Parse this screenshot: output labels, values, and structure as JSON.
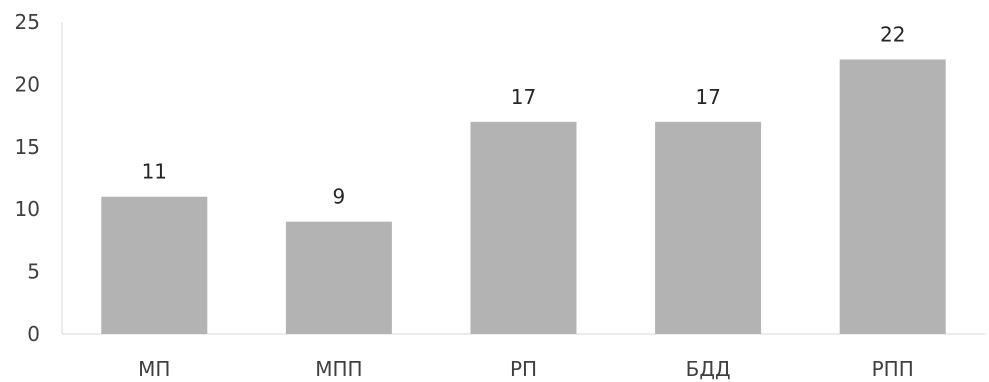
{
  "chart_data": {
    "type": "bar",
    "categories": [
      "МП",
      "МПП",
      "РП",
      "БДД",
      "РПП"
    ],
    "values": [
      11,
      9,
      17,
      17,
      22
    ],
    "data_labels": [
      "11",
      "9",
      "17",
      "17",
      "22"
    ],
    "title": "",
    "xlabel": "",
    "ylabel": "",
    "ylim": [
      0,
      25
    ],
    "yticks": [
      0,
      5,
      10,
      15,
      20,
      25
    ],
    "grid": false,
    "legend": "none",
    "bar_color": "#b3b3b3"
  }
}
